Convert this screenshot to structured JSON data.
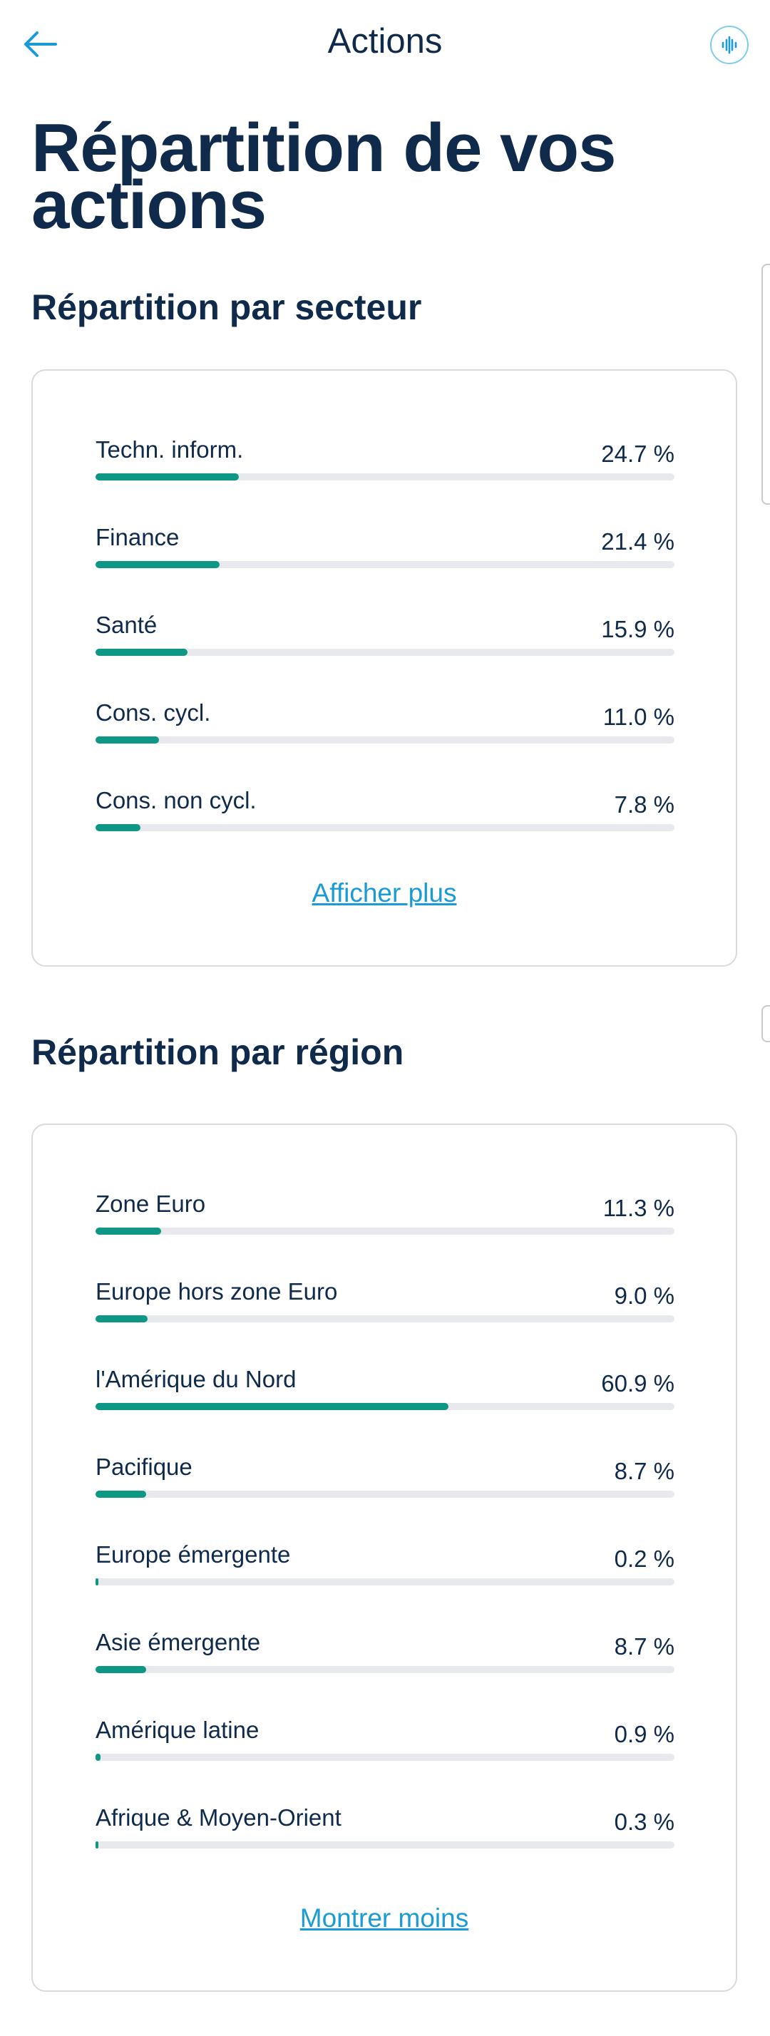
{
  "header": {
    "title": "Actions",
    "back_icon": "arrow-left-icon",
    "voice_icon": "voice-waveform-icon",
    "accent_color": "#1a9bd6"
  },
  "page_title": "Répartition de vos actions",
  "sector": {
    "title": "Répartition par secteur",
    "bar_color": "#0d9784",
    "items": [
      {
        "label": "Techn. inform.",
        "value": "24.7 %",
        "fraction": 0.247
      },
      {
        "label": "Finance",
        "value": "21.4 %",
        "fraction": 0.214
      },
      {
        "label": "Santé",
        "value": "15.9 %",
        "fraction": 0.159
      },
      {
        "label": "Cons. cycl.",
        "value": "11.0 %",
        "fraction": 0.11
      },
      {
        "label": "Cons. non cycl.",
        "value": "7.8 %",
        "fraction": 0.078
      }
    ],
    "link_label": "Afficher plus"
  },
  "region": {
    "title": "Répartition par région",
    "bar_color": "#0d9784",
    "items": [
      {
        "label": "Zone Euro",
        "value": "11.3 %",
        "fraction": 0.113
      },
      {
        "label": "Europe hors zone Euro",
        "value": "9.0 %",
        "fraction": 0.09
      },
      {
        "label": "l'Amérique du Nord",
        "value": "60.9 %",
        "fraction": 0.609
      },
      {
        "label": "Pacifique",
        "value": "8.7 %",
        "fraction": 0.087
      },
      {
        "label": "Europe émergente",
        "value": "0.2 %",
        "fraction": 0.002
      },
      {
        "label": "Asie émergente",
        "value": "8.7 %",
        "fraction": 0.087
      },
      {
        "label": "Amérique latine",
        "value": "0.9 %",
        "fraction": 0.009
      },
      {
        "label": "Afrique & Moyen-Orient",
        "value": "0.3 %",
        "fraction": 0.003
      }
    ],
    "link_label": "Montrer moins"
  }
}
